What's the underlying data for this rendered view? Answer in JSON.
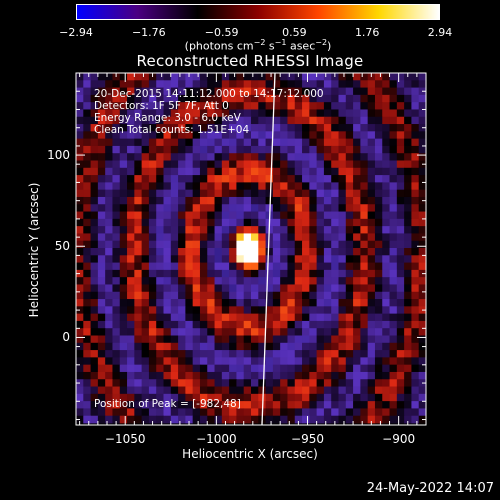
{
  "colorbar": {
    "tick_labels": [
      "−2.94",
      "−1.76",
      "−0.59",
      "0.59",
      "1.76",
      "2.94"
    ],
    "units_main": "(photons cm",
    "units_exp1": "−2",
    "units_mid1": " s",
    "units_exp2": "−1",
    "units_mid2": " asec",
    "units_exp3": "−2",
    "units_end": ")",
    "colors": [
      "#0000ff",
      "#4b0082",
      "#000000",
      "#8b0000",
      "#ff4500",
      "#ffd700",
      "#ffffff"
    ]
  },
  "title": "Reconstructed RHESSI Image",
  "info": {
    "time_range": "20-Dec-2015 14:11:12.000 to 14:17:12.000",
    "detectors": "Detectors: 1F 5F 7F, Att 0",
    "energy": "Energy Range: 3.0 - 6.0 keV",
    "clean": "Clean     Total counts: 1.51E+04"
  },
  "peak": "Position of Peak = [-982,48]",
  "axes": {
    "xlabel": "Heliocentric X (arcsec)",
    "ylabel": "Heliocentric Y (arcsec)",
    "xticks": [
      "−1050",
      "−1000",
      "−950",
      "−900"
    ],
    "yticks": [
      "100",
      "50",
      "0"
    ],
    "xrange": [
      -1077,
      -885
    ],
    "yrange": [
      -48,
      145
    ],
    "xtick_values": [
      -1050,
      -1000,
      -950,
      -900
    ],
    "ytick_values": [
      100,
      50,
      0
    ]
  },
  "footer_date": "24-May-2022 14:07"
}
